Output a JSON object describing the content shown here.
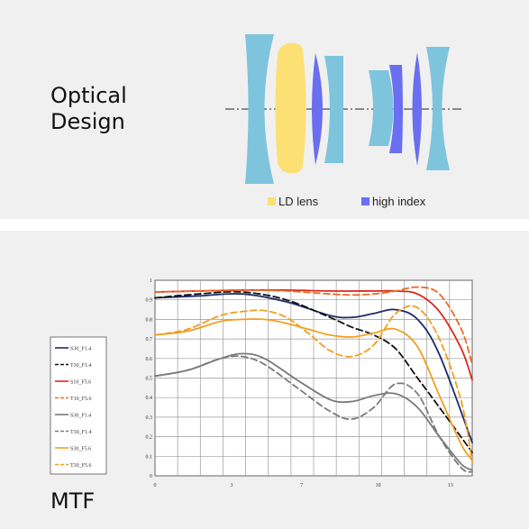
{
  "optical": {
    "title": "Optical\nDesign",
    "legend": [
      {
        "label": "LD lens",
        "color": "#fce074"
      },
      {
        "label": "high index",
        "color": "#6a6ef0"
      }
    ],
    "colors": {
      "standard": "#7ec4dc",
      "ld": "#fce074",
      "high_index": "#6a6ef0"
    }
  },
  "mtf": {
    "title": "MTF"
  },
  "chart_data": {
    "type": "line",
    "title": "",
    "xlabel": "",
    "ylabel": "",
    "xlim": [
      0,
      14.5
    ],
    "ylim": [
      0,
      1
    ],
    "xticks": [
      "0",
      "3",
      "7",
      "10",
      "13"
    ],
    "xtick_values": [
      0,
      3.5,
      6.7,
      10.2,
      13.5
    ],
    "yticks": [
      "0",
      "0.1",
      "0.2",
      "0.3",
      "0.4",
      "0.5",
      "0.6",
      "0.7",
      "0.8",
      "0.9",
      "1"
    ],
    "grid": true,
    "legend_position": "left",
    "series": [
      {
        "name": "S30_F1.4",
        "color": "#1f2a6b",
        "dash": false,
        "x": [
          0,
          2,
          4,
          6,
          8,
          9,
          10,
          11,
          12,
          13,
          14.5
        ],
        "y": [
          0.91,
          0.92,
          0.93,
          0.89,
          0.82,
          0.81,
          0.83,
          0.85,
          0.8,
          0.62,
          0.17
        ]
      },
      {
        "name": "T30_F1.4",
        "color": "#111111",
        "dash": true,
        "x": [
          0,
          2,
          4,
          6,
          8,
          9,
          10,
          11,
          12,
          13,
          14.5
        ],
        "y": [
          0.91,
          0.93,
          0.94,
          0.9,
          0.81,
          0.76,
          0.72,
          0.65,
          0.5,
          0.35,
          0.12
        ]
      },
      {
        "name": "S10_F5.6",
        "color": "#d9281c",
        "dash": false,
        "x": [
          0,
          2,
          4,
          6,
          8,
          10,
          11,
          12,
          13,
          14,
          14.5
        ],
        "y": [
          0.94,
          0.945,
          0.95,
          0.95,
          0.945,
          0.945,
          0.945,
          0.93,
          0.84,
          0.65,
          0.49
        ]
      },
      {
        "name": "T10_F5.6",
        "color": "#ee6a22",
        "dash": true,
        "x": [
          0,
          2,
          4,
          6,
          8,
          9,
          10,
          11,
          12,
          13,
          14,
          14.5
        ],
        "y": [
          0.94,
          0.945,
          0.95,
          0.945,
          0.93,
          0.925,
          0.93,
          0.945,
          0.965,
          0.93,
          0.75,
          0.57
        ]
      },
      {
        "name": "S30_F1.4",
        "color": "#7a7a7a",
        "dash": false,
        "x": [
          0,
          1.5,
          3,
          4,
          5,
          6.5,
          8,
          9,
          10,
          11,
          12,
          13,
          14,
          14.5
        ],
        "y": [
          0.51,
          0.54,
          0.6,
          0.625,
          0.6,
          0.49,
          0.39,
          0.38,
          0.41,
          0.42,
          0.35,
          0.2,
          0.06,
          0.03
        ]
      },
      {
        "name": "T30_F1.4",
        "color": "#7a7a7a",
        "dash": true,
        "x": [
          0,
          1.5,
          3,
          4,
          5,
          6.5,
          8,
          9,
          10,
          11,
          12,
          13,
          14,
          14.5
        ],
        "y": [
          0.51,
          0.54,
          0.6,
          0.61,
          0.57,
          0.45,
          0.33,
          0.29,
          0.35,
          0.47,
          0.42,
          0.2,
          0.04,
          0.02
        ]
      },
      {
        "name": "S30_F5.6",
        "color": "#f0a020",
        "dash": false,
        "x": [
          0,
          1.5,
          3,
          4,
          5,
          6,
          7,
          8,
          9,
          10,
          11,
          12,
          13,
          14,
          14.5
        ],
        "y": [
          0.72,
          0.74,
          0.79,
          0.8,
          0.8,
          0.78,
          0.75,
          0.72,
          0.71,
          0.73,
          0.75,
          0.66,
          0.41,
          0.16,
          0.08
        ]
      },
      {
        "name": "T30_F5.6",
        "color": "#f0a020",
        "dash": true,
        "x": [
          0,
          1.5,
          3,
          4,
          5,
          6,
          7,
          8,
          9,
          10,
          11,
          12,
          13,
          14,
          14.5
        ],
        "y": [
          0.72,
          0.75,
          0.82,
          0.84,
          0.845,
          0.81,
          0.73,
          0.64,
          0.61,
          0.67,
          0.83,
          0.86,
          0.7,
          0.38,
          0.07
        ]
      }
    ]
  }
}
